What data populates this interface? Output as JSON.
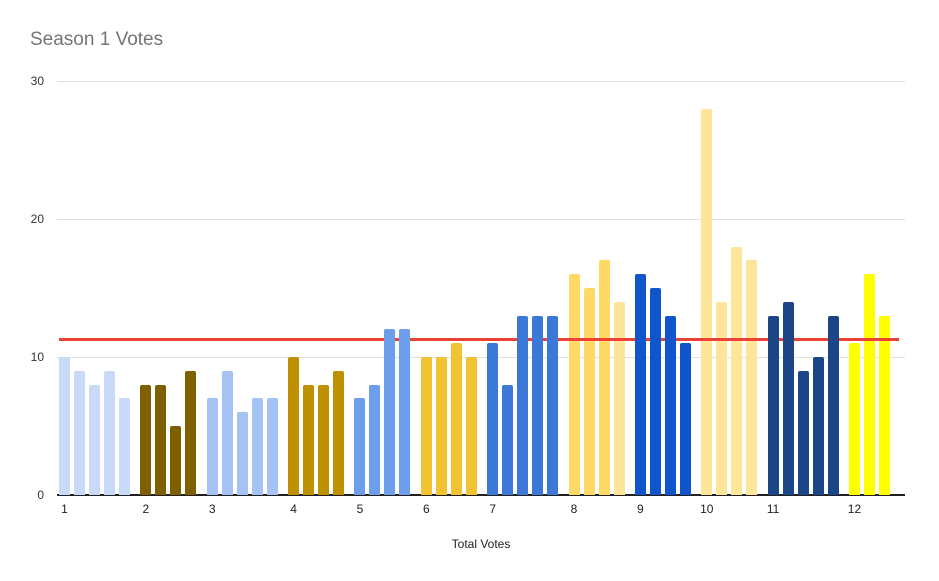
{
  "page": {
    "background": "#ffffff"
  },
  "chart_data": {
    "type": "bar",
    "title": "Season 1 Votes",
    "title_color": "#757575",
    "xlabel": "Total Votes",
    "ylabel": "",
    "ylim": [
      0,
      30
    ],
    "yticks": [
      0,
      10,
      20,
      30
    ],
    "grid": true,
    "legend": "none",
    "gridline_color": "#e0e0e0",
    "axis_line_color": "#212121",
    "average_line": {
      "value": 11.27,
      "color": "#ea4335"
    },
    "categories": [
      "1",
      "2",
      "3",
      "4",
      "5",
      "6",
      "7",
      "8",
      "9",
      "10",
      "11",
      "12"
    ],
    "groups": [
      {
        "label": "1",
        "color": "#c9daf8",
        "layer": "front",
        "values": [
          10,
          9,
          8,
          9,
          7
        ]
      },
      {
        "label": "2",
        "color": "#7f6000",
        "layer": "back",
        "values": [
          8,
          8,
          5,
          9
        ]
      },
      {
        "label": "3",
        "color": "#a4c2f4",
        "layer": "front",
        "values": [
          7,
          9,
          6,
          7,
          7
        ]
      },
      {
        "label": "4",
        "color": "#bf9000",
        "layer": "back",
        "values": [
          10,
          8,
          8,
          9
        ]
      },
      {
        "label": "5",
        "color": "#6d9eeb",
        "layer": "front",
        "values": [
          7,
          8,
          12,
          12
        ]
      },
      {
        "label": "6",
        "color": "#f1c232",
        "layer": "back",
        "values": [
          10,
          10,
          11,
          10
        ]
      },
      {
        "label": "7",
        "color": "#3c78d8",
        "layer": "front",
        "values": [
          11,
          8,
          13,
          13,
          13
        ]
      },
      {
        "label": "8",
        "color": "#ffd966",
        "layer": "back",
        "values": [
          16,
          15,
          17,
          14
        ],
        "bar_colors": [
          "#ffd966",
          "#ffd966",
          "#ffd966",
          "#ffe599"
        ]
      },
      {
        "label": "9",
        "color": "#1155cc",
        "layer": "front",
        "values": [
          16,
          15,
          13,
          11
        ]
      },
      {
        "label": "10",
        "color": "#ffe599",
        "layer": "back",
        "values": [
          28,
          14,
          18,
          17
        ]
      },
      {
        "label": "11",
        "color": "#1c4587",
        "layer": "front",
        "values": [
          13,
          14,
          9,
          10,
          13
        ]
      },
      {
        "label": "12",
        "color": "#ffff00",
        "layer": "back",
        "values": [
          11,
          16,
          13
        ]
      }
    ]
  }
}
